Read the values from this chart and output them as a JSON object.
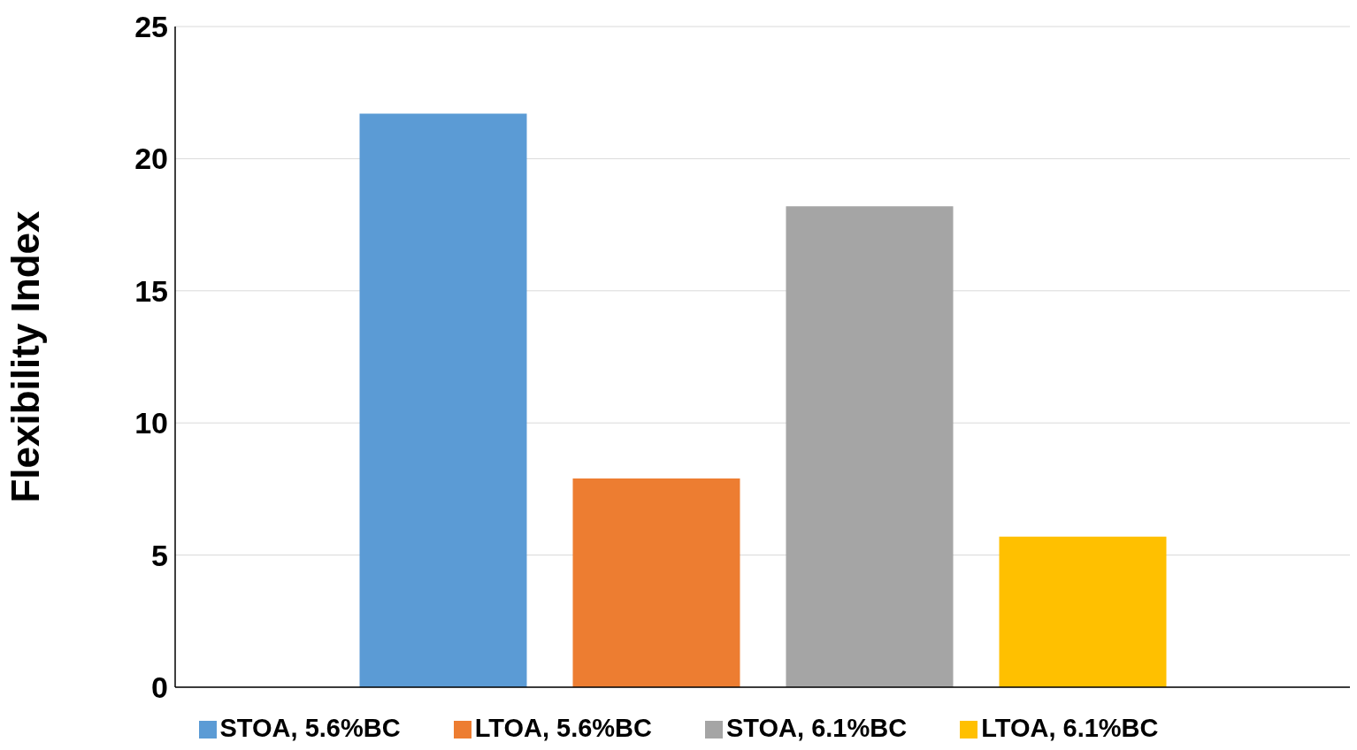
{
  "chart_data": {
    "type": "bar",
    "ylabel": "Flexibility Index",
    "categories": [
      null
    ],
    "series": [
      {
        "name": "STOA, 5.6%BC",
        "color": "#5b9bd5",
        "values": [
          21.7
        ]
      },
      {
        "name": "LTOA, 5.6%BC",
        "color": "#ed7d31",
        "values": [
          7.9
        ]
      },
      {
        "name": "STOA, 6.1%BC",
        "color": "#a5a5a5",
        "values": [
          18.2
        ]
      },
      {
        "name": "LTOA, 6.1%BC",
        "color": "#ffc000",
        "values": [
          5.7
        ]
      }
    ],
    "ylim": [
      0,
      25
    ],
    "yticks": [
      0,
      5,
      10,
      15,
      20,
      25
    ],
    "grid": "y",
    "legend": "bottom"
  }
}
